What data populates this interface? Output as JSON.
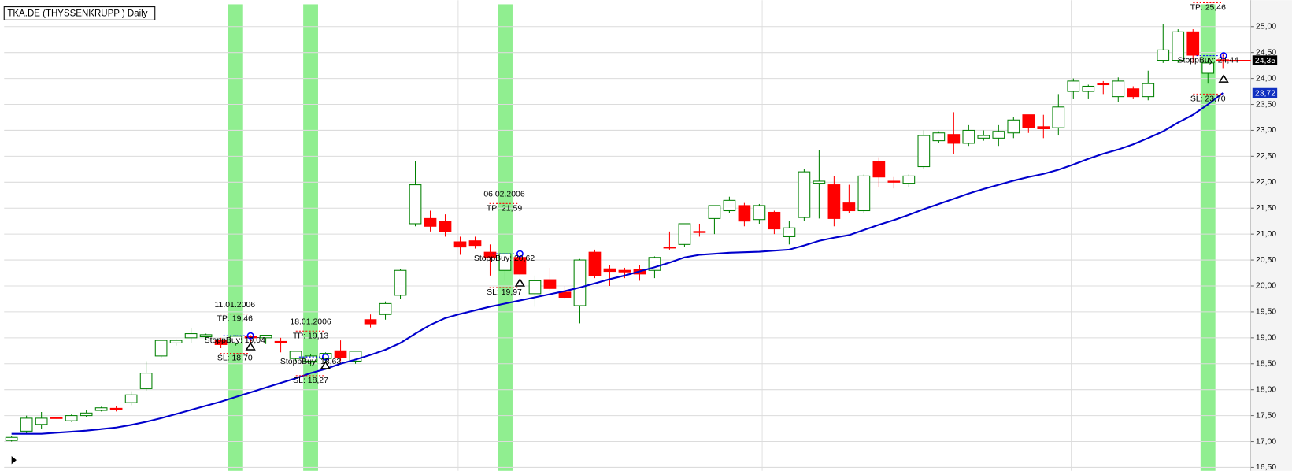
{
  "chart_data": {
    "type": "candlestick",
    "title": "TKA.DE (THYSSENKRUPP ) Daily",
    "up_color": "#008000",
    "down_color": "#ff0000",
    "series": {
      "open": [
        17.02,
        17.2,
        17.33,
        17.46,
        17.4,
        17.5,
        17.6,
        17.64,
        17.75,
        18.02,
        18.65,
        18.9,
        19.0,
        19.02,
        18.95,
        18.9,
        19.03,
        19.0,
        18.93,
        18.6,
        18.55,
        18.6,
        18.75,
        18.55,
        19.35,
        19.45,
        19.82,
        21.2,
        21.3,
        21.25,
        20.85,
        20.87,
        20.65,
        20.3,
        20.55,
        19.85,
        20.12,
        19.88,
        19.62,
        20.65,
        20.33,
        20.3,
        20.32,
        20.3,
        20.75,
        20.8,
        21.05,
        21.3,
        21.45,
        21.55,
        21.28,
        21.42,
        20.95,
        21.32,
        21.98,
        21.95,
        21.6,
        21.45,
        22.4,
        22.02,
        21.98,
        22.3,
        22.8,
        22.92,
        22.75,
        22.85,
        22.85,
        22.95,
        23.3,
        23.07,
        23.05,
        23.75,
        23.75,
        23.9,
        23.65,
        23.8,
        23.65,
        24.35,
        24.35,
        24.9,
        24.1,
        24.36
      ],
      "high": [
        17.1,
        17.5,
        17.57,
        17.47,
        17.52,
        17.6,
        17.67,
        17.68,
        17.97,
        18.55,
        18.95,
        18.97,
        19.18,
        19.08,
        19.0,
        19.05,
        19.05,
        19.05,
        19.0,
        18.75,
        18.68,
        18.72,
        18.95,
        18.75,
        19.45,
        19.7,
        20.32,
        22.4,
        21.45,
        21.38,
        20.95,
        20.95,
        20.8,
        20.65,
        20.68,
        20.2,
        20.35,
        20.0,
        20.52,
        20.7,
        20.4,
        20.35,
        20.4,
        20.57,
        21.05,
        21.2,
        21.2,
        21.55,
        21.72,
        21.6,
        21.58,
        21.45,
        21.25,
        22.25,
        22.62,
        22.12,
        21.95,
        22.15,
        22.48,
        22.1,
        22.15,
        23.0,
        22.98,
        23.35,
        23.1,
        23.0,
        23.1,
        23.25,
        23.3,
        23.3,
        23.7,
        24.0,
        23.88,
        23.95,
        24.02,
        23.85,
        24.15,
        25.05,
        24.95,
        24.95,
        24.35,
        24.5
      ],
      "low": [
        17.0,
        17.15,
        17.25,
        17.44,
        17.38,
        17.47,
        17.58,
        17.58,
        17.7,
        17.98,
        18.62,
        18.85,
        18.9,
        18.95,
        18.8,
        18.85,
        18.82,
        18.88,
        18.72,
        18.55,
        18.45,
        18.5,
        18.55,
        18.5,
        19.2,
        19.35,
        19.75,
        21.15,
        21.05,
        20.95,
        20.6,
        20.72,
        20.2,
        20.1,
        20.2,
        19.6,
        19.9,
        19.75,
        19.28,
        20.15,
        20.0,
        20.15,
        20.1,
        20.15,
        20.7,
        20.75,
        20.95,
        21.0,
        21.4,
        21.15,
        21.2,
        21.0,
        20.8,
        21.25,
        21.3,
        21.15,
        21.4,
        21.4,
        21.9,
        21.88,
        21.9,
        22.25,
        22.75,
        22.55,
        22.7,
        22.8,
        22.7,
        22.85,
        22.95,
        22.85,
        22.9,
        23.6,
        23.6,
        23.7,
        23.55,
        23.6,
        23.58,
        24.3,
        24.3,
        24.3,
        23.9,
        24.2
      ],
      "close": [
        17.08,
        17.45,
        17.45,
        17.45,
        17.5,
        17.55,
        17.65,
        17.62,
        17.9,
        18.32,
        18.95,
        18.95,
        19.08,
        19.06,
        18.87,
        19.03,
        19.0,
        19.05,
        18.9,
        18.74,
        18.65,
        18.7,
        18.62,
        18.74,
        19.27,
        19.66,
        20.3,
        21.95,
        21.15,
        21.05,
        20.75,
        20.78,
        20.55,
        20.62,
        20.23,
        20.1,
        19.95,
        19.78,
        20.5,
        20.2,
        20.28,
        20.27,
        20.23,
        20.55,
        20.73,
        21.2,
        21.03,
        21.55,
        21.65,
        21.25,
        21.55,
        21.1,
        21.12,
        22.2,
        22.02,
        21.3,
        21.45,
        22.12,
        22.1,
        22.0,
        22.12,
        22.9,
        22.95,
        22.75,
        23.0,
        22.9,
        22.98,
        23.2,
        23.05,
        23.03,
        23.45,
        23.95,
        23.85,
        23.88,
        23.95,
        23.65,
        23.9,
        24.55,
        24.9,
        24.45,
        24.3,
        24.35
      ]
    },
    "ma": {
      "color": "#0000cc",
      "values": [
        17.15,
        17.15,
        17.15,
        17.17,
        17.19,
        17.21,
        17.24,
        17.27,
        17.32,
        17.38,
        17.45,
        17.53,
        17.61,
        17.69,
        17.77,
        17.86,
        17.95,
        18.04,
        18.13,
        18.22,
        18.32,
        18.4,
        18.5,
        18.58,
        18.67,
        18.77,
        18.9,
        19.08,
        19.25,
        19.38,
        19.46,
        19.53,
        19.6,
        19.66,
        19.72,
        19.78,
        19.84,
        19.9,
        19.97,
        20.05,
        20.13,
        20.2,
        20.28,
        20.36,
        20.45,
        20.55,
        20.6,
        20.62,
        20.64,
        20.65,
        20.66,
        20.68,
        20.7,
        20.78,
        20.87,
        20.93,
        20.98,
        21.08,
        21.18,
        21.27,
        21.37,
        21.48,
        21.58,
        21.68,
        21.78,
        21.87,
        21.95,
        22.03,
        22.1,
        22.16,
        22.24,
        22.34,
        22.45,
        22.55,
        22.63,
        22.73,
        22.85,
        22.98,
        23.15,
        23.3,
        23.5,
        23.72
      ]
    },
    "ylim": [
      16.45,
      25.43
    ],
    "yticks": [
      {
        "value": 16.5,
        "label": "16,50"
      },
      {
        "value": 17,
        "label": "17,00"
      },
      {
        "value": 17.5,
        "label": "17,50"
      },
      {
        "value": 18,
        "label": "18,00"
      },
      {
        "value": 18.5,
        "label": "18,50"
      },
      {
        "value": 19,
        "label": "19,00"
      },
      {
        "value": 19.5,
        "label": "19,50"
      },
      {
        "value": 20,
        "label": "20,00"
      },
      {
        "value": 20.5,
        "label": "20,50"
      },
      {
        "value": 21,
        "label": "21,00"
      },
      {
        "value": 21.5,
        "label": "21,50"
      },
      {
        "value": 22,
        "label": "22,00"
      },
      {
        "value": 22.5,
        "label": "22,50"
      },
      {
        "value": 23,
        "label": "23,00"
      },
      {
        "value": 23.5,
        "label": "23,50"
      },
      {
        "value": 24,
        "label": "24,00"
      },
      {
        "value": 24.5,
        "label": "24,50"
      },
      {
        "value": 25,
        "label": "25,00"
      }
    ],
    "grid": true,
    "last_price": {
      "value": 24.35,
      "label": "24,35"
    },
    "ma_last": {
      "value": 23.72,
      "label": "23,72"
    },
    "trades": [
      {
        "date": "11.01.2006",
        "tp": {
          "value": 19.46,
          "label": "TP: 19,46"
        },
        "entry": {
          "value": 19.04,
          "label": "StoppBuy: 19,04"
        },
        "sl": {
          "value": 18.7,
          "label": "SL: 18,70"
        }
      },
      {
        "date": "18.01.2006",
        "tp": {
          "value": 19.13,
          "label": "TP: 19,13"
        },
        "entry": {
          "value": 18.63,
          "label": "StoppBuy: 18,63"
        },
        "sl": {
          "value": 18.27,
          "label": "SL: 18,27"
        }
      },
      {
        "date": "06.02.2006",
        "tp": {
          "value": 21.59,
          "label": "TP: 21,59"
        },
        "entry": {
          "value": 20.62,
          "label": "StoppBuy: 20,62"
        },
        "sl": {
          "value": 19.97,
          "label": "SL: 19,97"
        }
      },
      {
        "tp": {
          "value": 25.46,
          "label": "TP: 25,46"
        },
        "entry": {
          "value": 24.44,
          "label": "StoppBuy: 24,44"
        },
        "sl": {
          "value": 23.7,
          "label": "SL: 23,70"
        }
      }
    ]
  }
}
